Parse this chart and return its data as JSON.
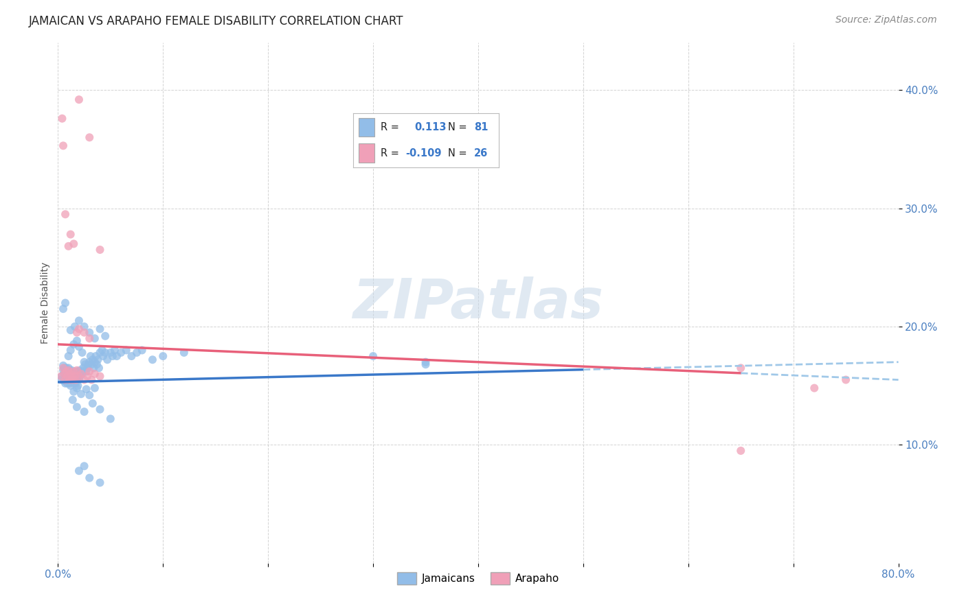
{
  "title": "JAMAICAN VS ARAPAHO FEMALE DISABILITY CORRELATION CHART",
  "source": "Source: ZipAtlas.com",
  "ylabel": "Female Disability",
  "xlim": [
    0.0,
    0.8
  ],
  "ylim": [
    0.0,
    0.44
  ],
  "yticks": [
    0.1,
    0.2,
    0.3,
    0.4
  ],
  "yticklabels": [
    "10.0%",
    "20.0%",
    "30.0%",
    "40.0%"
  ],
  "background_color": "#ffffff",
  "grid_color": "#c8c8c8",
  "jamaican_color": "#92bde8",
  "arapaho_color": "#f0a0b8",
  "trend_jamaican_color": "#3a78c9",
  "trend_arapaho_color": "#e8607a",
  "trend_dash_color": "#a0c8e8",
  "title_fontsize": 12,
  "axis_fontsize": 10,
  "tick_fontsize": 11,
  "source_fontsize": 10,
  "jamaican_x": [
    0.003,
    0.004,
    0.005,
    0.005,
    0.006,
    0.006,
    0.006,
    0.007,
    0.007,
    0.007,
    0.008,
    0.008,
    0.008,
    0.009,
    0.009,
    0.009,
    0.01,
    0.01,
    0.01,
    0.011,
    0.011,
    0.011,
    0.012,
    0.012,
    0.012,
    0.013,
    0.013,
    0.013,
    0.014,
    0.014,
    0.015,
    0.015,
    0.016,
    0.016,
    0.017,
    0.017,
    0.018,
    0.018,
    0.019,
    0.019,
    0.02,
    0.02,
    0.021,
    0.021,
    0.022,
    0.023,
    0.024,
    0.025,
    0.026,
    0.027,
    0.028,
    0.029,
    0.03,
    0.031,
    0.032,
    0.033,
    0.034,
    0.035,
    0.036,
    0.037,
    0.038,
    0.039,
    0.04,
    0.042,
    0.043,
    0.045,
    0.047,
    0.05,
    0.052,
    0.054,
    0.056,
    0.06,
    0.065,
    0.07,
    0.075,
    0.08,
    0.09,
    0.1,
    0.12,
    0.35,
    0.005,
    0.007
  ],
  "jamaican_y": [
    0.155,
    0.158,
    0.163,
    0.167,
    0.154,
    0.16,
    0.165,
    0.152,
    0.158,
    0.162,
    0.155,
    0.16,
    0.165,
    0.152,
    0.157,
    0.162,
    0.155,
    0.16,
    0.165,
    0.152,
    0.158,
    0.163,
    0.15,
    0.156,
    0.162,
    0.153,
    0.158,
    0.163,
    0.155,
    0.16,
    0.152,
    0.158,
    0.155,
    0.162,
    0.152,
    0.158,
    0.155,
    0.162,
    0.15,
    0.158,
    0.155,
    0.162,
    0.158,
    0.163,
    0.162,
    0.16,
    0.165,
    0.17,
    0.168,
    0.162,
    0.165,
    0.168,
    0.17,
    0.175,
    0.168,
    0.172,
    0.165,
    0.17,
    0.175,
    0.168,
    0.172,
    0.165,
    0.178,
    0.18,
    0.175,
    0.178,
    0.172,
    0.178,
    0.175,
    0.18,
    0.175,
    0.178,
    0.18,
    0.175,
    0.178,
    0.18,
    0.172,
    0.175,
    0.178,
    0.168,
    0.215,
    0.22
  ],
  "jamaican_y_outliers_x": [
    0.012,
    0.016,
    0.02,
    0.025,
    0.03,
    0.035,
    0.04,
    0.045,
    0.014,
    0.018,
    0.025,
    0.033,
    0.04,
    0.05,
    0.01,
    0.012,
    0.015,
    0.018,
    0.02,
    0.023,
    0.015,
    0.018,
    0.022,
    0.027,
    0.03,
    0.035,
    0.3,
    0.02,
    0.025,
    0.03,
    0.04,
    0.35
  ],
  "jamaican_y_outliers_y": [
    0.197,
    0.2,
    0.205,
    0.2,
    0.195,
    0.19,
    0.198,
    0.192,
    0.138,
    0.132,
    0.128,
    0.135,
    0.13,
    0.122,
    0.175,
    0.18,
    0.185,
    0.188,
    0.183,
    0.178,
    0.145,
    0.148,
    0.143,
    0.147,
    0.142,
    0.148,
    0.175,
    0.078,
    0.082,
    0.072,
    0.068,
    0.17
  ],
  "arapaho_x": [
    0.003,
    0.005,
    0.006,
    0.007,
    0.008,
    0.009,
    0.01,
    0.011,
    0.012,
    0.013,
    0.014,
    0.015,
    0.016,
    0.017,
    0.018,
    0.02,
    0.022,
    0.025,
    0.028,
    0.03,
    0.032,
    0.035,
    0.04,
    0.65,
    0.72,
    0.75
  ],
  "arapaho_y": [
    0.158,
    0.165,
    0.16,
    0.155,
    0.162,
    0.158,
    0.163,
    0.155,
    0.16,
    0.158,
    0.155,
    0.162,
    0.158,
    0.155,
    0.163,
    0.158,
    0.16,
    0.155,
    0.158,
    0.162,
    0.155,
    0.16,
    0.158,
    0.165,
    0.148,
    0.155
  ],
  "arapaho_outlier_x": [
    0.004,
    0.005,
    0.007,
    0.01,
    0.012,
    0.015,
    0.018,
    0.02,
    0.025,
    0.03,
    0.02,
    0.03,
    0.04,
    0.65
  ],
  "arapaho_outlier_y": [
    0.376,
    0.353,
    0.295,
    0.268,
    0.278,
    0.27,
    0.195,
    0.198,
    0.195,
    0.19,
    0.392,
    0.36,
    0.265,
    0.095
  ],
  "jamaican_trend_x0": 0.0,
  "jamaican_trend_x1": 0.5,
  "jamaican_trend_dash_x0": 0.5,
  "jamaican_trend_dash_x1": 0.8,
  "jamaican_trend_y_at_0": 0.153,
  "jamaican_trend_y_at_08": 0.17,
  "arapaho_trend_x0": 0.0,
  "arapaho_trend_x1": 0.65,
  "arapaho_trend_dash_x0": 0.65,
  "arapaho_trend_dash_x1": 0.8,
  "arapaho_trend_y_at_0": 0.185,
  "arapaho_trend_y_at_08": 0.155
}
